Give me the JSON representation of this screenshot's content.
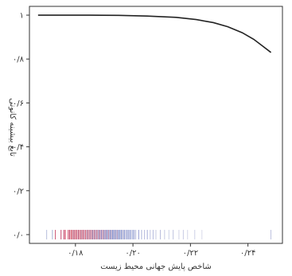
{
  "chart_data": {
    "type": "line",
    "xlabel": "شاخص پایش جهانی محیط زیست",
    "ylabel": "تابع بیشینه کانونی",
    "xlim": [
      0.164,
      0.252
    ],
    "ylim": [
      -0.04,
      1.04
    ],
    "x_ticks": [
      {
        "value": 0.18,
        "label": "۰/۱۸"
      },
      {
        "value": 0.2,
        "label": "۰/۲۰"
      },
      {
        "value": 0.22,
        "label": "۰/۲۲"
      },
      {
        "value": 0.24,
        "label": "۰/۲۴"
      }
    ],
    "y_ticks": [
      {
        "value": 0.0,
        "label": "۰/۰"
      },
      {
        "value": 0.2,
        "label": "۰/۲"
      },
      {
        "value": 0.4,
        "label": "۰/۴"
      },
      {
        "value": 0.6,
        "label": "۰/۶"
      },
      {
        "value": 0.8,
        "label": "۰/۸"
      },
      {
        "value": 1.0,
        "label": "۱"
      }
    ],
    "series": [
      {
        "x": [
          0.167,
          0.175,
          0.185,
          0.195,
          0.205,
          0.215,
          0.222,
          0.228,
          0.233,
          0.238,
          0.242,
          0.245,
          0.248
        ],
        "y": [
          1.0,
          1.0,
          1.0,
          0.999,
          0.996,
          0.99,
          0.98,
          0.966,
          0.947,
          0.92,
          0.89,
          0.86,
          0.83
        ]
      }
    ],
    "rug": {
      "x": [
        0.17,
        0.172,
        0.173,
        0.175,
        0.176,
        0.1765,
        0.1775,
        0.178,
        0.1785,
        0.179,
        0.1795,
        0.18,
        0.1805,
        0.181,
        0.1815,
        0.182,
        0.1825,
        0.183,
        0.1835,
        0.184,
        0.1845,
        0.185,
        0.1855,
        0.186,
        0.1865,
        0.187,
        0.1875,
        0.188,
        0.1885,
        0.189,
        0.1895,
        0.19,
        0.1905,
        0.191,
        0.1915,
        0.192,
        0.1925,
        0.193,
        0.1935,
        0.194,
        0.1945,
        0.195,
        0.1955,
        0.196,
        0.1965,
        0.197,
        0.1975,
        0.198,
        0.1985,
        0.199,
        0.1995,
        0.2,
        0.2005,
        0.201,
        0.202,
        0.203,
        0.204,
        0.205,
        0.206,
        0.207,
        0.208,
        0.2095,
        0.211,
        0.2125,
        0.214,
        0.216,
        0.2175,
        0.219,
        0.2215,
        0.224,
        0.248
      ],
      "colors": [
        "#b0b8d8",
        "#9aa4cc",
        "#c84a6a",
        "#c0305a",
        "#b51e4c",
        "#d22a4a",
        "#c0183c",
        "#b01b48",
        "#c8243c",
        "#b02848",
        "#a61c4a",
        "#c41f3c",
        "#b8284e",
        "#a82552",
        "#c82848",
        "#9c2c58",
        "#b82448",
        "#a03060",
        "#c43a58",
        "#8c3468",
        "#b03058",
        "#983a6c",
        "#a8305c",
        "#7c3c78",
        "#9c3464",
        "#884080",
        "#a83c64",
        "#6c448c",
        "#8e3c70",
        "#6a4898",
        "#9a4a76",
        "#5c4c9c",
        "#7e5090",
        "#4c50a8",
        "#8a5088",
        "#5058ac",
        "#7a5c9c",
        "#4658b4",
        "#6a60a4",
        "#5a62b0",
        "#8868a0",
        "#4a5cb8",
        "#7478b0",
        "#5868b8",
        "#9090c0",
        "#6070bc",
        "#a0a0cc",
        "#6878c0",
        "#8088c4",
        "#7080c4",
        "#a8acd4",
        "#7888c8",
        "#9098cc",
        "#b8bcdc",
        "#8890cc",
        "#a0a8d4",
        "#b4b8dc",
        "#9ca4d4",
        "#b8bcdc",
        "#aab0d8",
        "#c4c8e0",
        "#b0b4d8",
        "#c0c4e0",
        "#c8cce4",
        "#b8bcdc",
        "#cccfe4",
        "#c0c4e0",
        "#d0d2e6",
        "#c8cce4",
        "#d4d6e8",
        "#b8bcdc"
      ]
    }
  }
}
